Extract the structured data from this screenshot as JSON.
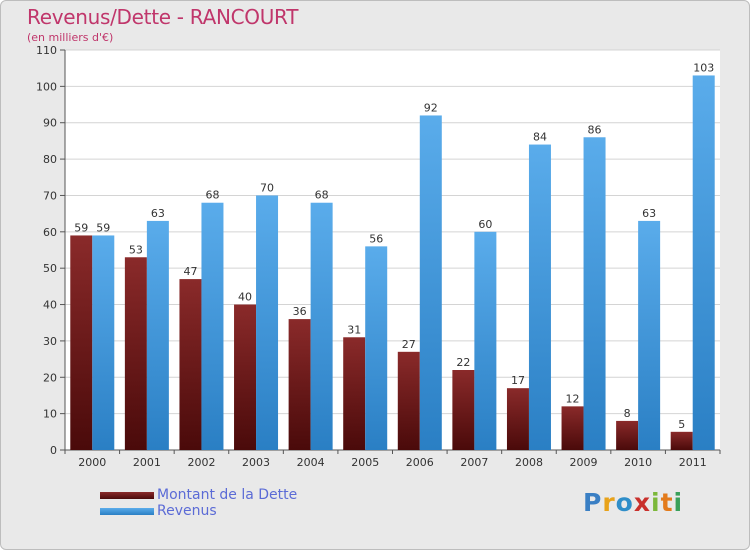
{
  "title": "Revenus/Dette - RANCOURT",
  "subtitle": "(en milliers d'€)",
  "logo": {
    "letters": [
      "P",
      "r",
      "o",
      "x",
      "i",
      "t",
      "i"
    ]
  },
  "colors": {
    "logo": [
      "#3a7fc4",
      "#e8a21a",
      "#2f8ec9",
      "#c9302c",
      "#7cb83a",
      "#e37b1c",
      "#3aa05a"
    ]
  },
  "chart_data": {
    "type": "bar",
    "title": "Revenus/Dette - RANCOURT",
    "ylabel": "(en milliers d'€)",
    "xlabel": "",
    "ylim": [
      0,
      110
    ],
    "yticks": [
      0,
      10,
      20,
      30,
      40,
      50,
      60,
      70,
      80,
      90,
      100,
      110
    ],
    "grid": true,
    "legend_position": "bottom-left",
    "categories": [
      "2000",
      "2001",
      "2002",
      "2003",
      "2004",
      "2005",
      "2006",
      "2007",
      "2008",
      "2009",
      "2010",
      "2011"
    ],
    "series": [
      {
        "name": "Montant de la Dette",
        "color_top": "#8a2a2a",
        "color_bottom": "#4a0a0a",
        "values": [
          59,
          53,
          47,
          40,
          36,
          31,
          27,
          22,
          17,
          12,
          8,
          5
        ]
      },
      {
        "name": "Revenus",
        "color_top": "#5aaceb",
        "color_bottom": "#2a7fc4",
        "values": [
          59,
          63,
          68,
          70,
          68,
          56,
          92,
          60,
          84,
          86,
          63,
          103
        ]
      }
    ]
  }
}
